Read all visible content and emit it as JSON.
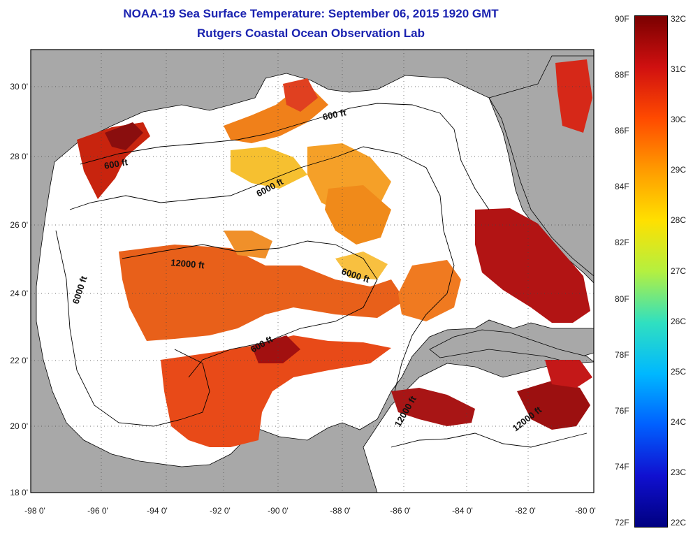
{
  "title": "NOAA-19 Sea Surface Temperature:  September 06, 2015 1920 GMT",
  "subtitle": "Rutgers Coastal Ocean Observation Lab",
  "lat_ticks": [
    "30 0'",
    "28 0'",
    "26 0'",
    "24 0'",
    "22 0'",
    "20 0'",
    "18 0'"
  ],
  "lon_ticks": [
    "-98 0'",
    "-96 0'",
    "-94 0'",
    "-92 0'",
    "-90 0'",
    "-88 0'",
    "-86 0'",
    "-84 0'",
    "-82 0'",
    "-80 0'"
  ],
  "contour_labels": [
    {
      "text": "600 ft",
      "id": "label-600ft-north"
    },
    {
      "text": "600 ft",
      "id": "label-600ft-west"
    },
    {
      "text": "6000 ft",
      "id": "label-6000ft-north"
    },
    {
      "text": "12000 ft",
      "id": "label-12000ft-central"
    },
    {
      "text": "6000 ft",
      "id": "label-6000ft-central"
    },
    {
      "text": "6000 ft",
      "id": "label-6000ft-west"
    },
    {
      "text": "600 ft",
      "id": "label-600ft-south"
    },
    {
      "text": "12000 ft",
      "id": "label-12000ft-caribbean-w"
    },
    {
      "text": "12000 ft",
      "id": "label-12000ft-caribbean-e"
    }
  ],
  "colorbar": {
    "fahrenheit": [
      "90F",
      "88F",
      "86F",
      "84F",
      "82F",
      "80F",
      "78F",
      "76F",
      "74F",
      "72F"
    ],
    "celsius": [
      "32C",
      "31C",
      "30C",
      "29C",
      "28C",
      "27C",
      "26C",
      "25C",
      "24C",
      "23C",
      "22C"
    ],
    "colors": [
      "#7a0000",
      "#d01010",
      "#ff4a00",
      "#ff9a00",
      "#ffe000",
      "#b4f040",
      "#30e0c0",
      "#00b8ff",
      "#0060ff",
      "#1010d0",
      "#000080"
    ]
  },
  "colors": {
    "land": "#a8a8a8",
    "ocean": "#ffffff",
    "title": "#1a22b0"
  }
}
